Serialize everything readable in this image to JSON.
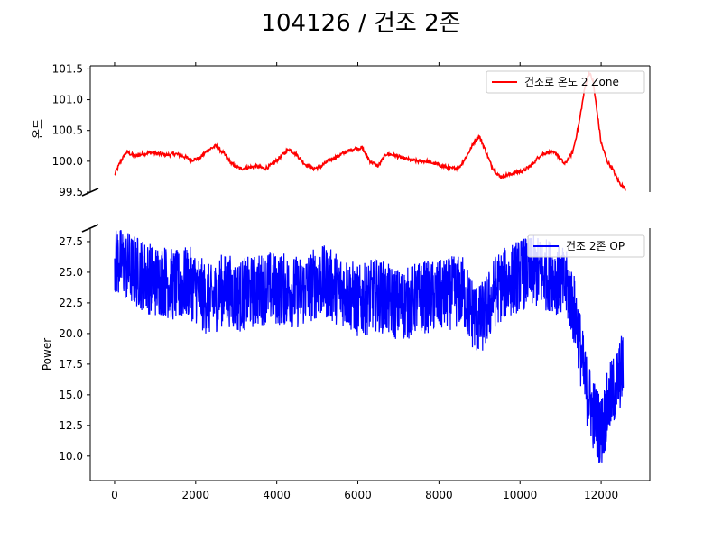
{
  "title": "104126 / 건조 2존",
  "colors": {
    "temperature": "#ff0000",
    "power": "#0000ff"
  },
  "chart_data": [
    {
      "type": "line",
      "panel": "top",
      "ylabel": "온도",
      "xlabel": "",
      "xlim": [
        -600,
        13200
      ],
      "ylim": [
        99.5,
        101.55
      ],
      "yticks": [
        99.5,
        100.0,
        100.5,
        101.0,
        101.5
      ],
      "ytick_labels": [
        "99.5",
        "100.0",
        "100.5",
        "101.0",
        "101.5"
      ],
      "legend_position": "top-right",
      "series": [
        {
          "name": "건조로 온도 2 Zone",
          "color": "#ff0000",
          "x": [
            0,
            150,
            300,
            500,
            700,
            900,
            1100,
            1300,
            1500,
            1700,
            1900,
            2100,
            2300,
            2500,
            2700,
            2900,
            3100,
            3300,
            3500,
            3700,
            3900,
            4100,
            4300,
            4500,
            4700,
            4900,
            5100,
            5300,
            5500,
            5700,
            5900,
            6100,
            6300,
            6500,
            6700,
            6900,
            7100,
            7300,
            7500,
            7700,
            7900,
            8100,
            8300,
            8500,
            8700,
            8900,
            9000,
            9100,
            9300,
            9500,
            9700,
            9900,
            10100,
            10300,
            10500,
            10700,
            10900,
            11100,
            11300,
            11450,
            11600,
            11700,
            11800,
            11900,
            12000,
            12150,
            12300,
            12450,
            12600
          ],
          "values": [
            99.78,
            100.0,
            100.15,
            100.08,
            100.12,
            100.14,
            100.12,
            100.1,
            100.12,
            100.08,
            100.02,
            100.05,
            100.18,
            100.25,
            100.12,
            99.95,
            99.88,
            99.9,
            99.92,
            99.88,
            99.95,
            100.08,
            100.2,
            100.1,
            99.95,
            99.88,
            99.92,
            100.02,
            100.08,
            100.15,
            100.2,
            100.22,
            100.0,
            99.92,
            100.12,
            100.1,
            100.05,
            100.02,
            100.0,
            100.0,
            99.96,
            99.92,
            99.88,
            99.9,
            100.1,
            100.35,
            100.4,
            100.25,
            99.92,
            99.75,
            99.78,
            99.82,
            99.85,
            99.95,
            100.1,
            100.15,
            100.12,
            99.95,
            100.15,
            100.6,
            101.2,
            101.45,
            101.3,
            100.8,
            100.3,
            100.0,
            99.85,
            99.65,
            99.55
          ]
        }
      ]
    },
    {
      "type": "line",
      "panel": "bottom",
      "ylabel": "Power",
      "xlabel": "",
      "xlim": [
        -600,
        13200
      ],
      "ylim": [
        8.0,
        28.6
      ],
      "yticks": [
        10.0,
        12.5,
        15.0,
        17.5,
        20.0,
        22.5,
        25.0,
        27.5
      ],
      "ytick_labels": [
        "10.0",
        "12.5",
        "15.0",
        "17.5",
        "20.0",
        "22.5",
        "25.0",
        "27.5"
      ],
      "xticks": [
        0,
        2000,
        4000,
        6000,
        8000,
        10000,
        12000
      ],
      "xtick_labels": [
        "0",
        "2000",
        "4000",
        "6000",
        "8000",
        "10000",
        "12000"
      ],
      "legend_position": "top-right",
      "series": [
        {
          "name": "건조 2존 OP",
          "color": "#0000ff",
          "x": [
            0,
            200,
            400,
            600,
            800,
            1000,
            1200,
            1400,
            1600,
            1800,
            2000,
            2200,
            2400,
            2600,
            2800,
            3000,
            3200,
            3400,
            3600,
            3800,
            4000,
            4200,
            4400,
            4600,
            4800,
            5000,
            5200,
            5400,
            5600,
            5800,
            6000,
            6200,
            6400,
            6600,
            6800,
            7000,
            7200,
            7400,
            7600,
            7800,
            8000,
            8200,
            8400,
            8600,
            8800,
            9000,
            9200,
            9400,
            9600,
            9800,
            10000,
            10200,
            10400,
            10600,
            10800,
            11000,
            11200,
            11400,
            11600,
            11800,
            12000,
            12200,
            12400,
            12550
          ],
          "values": [
            26.0,
            25.8,
            25.2,
            25.0,
            24.6,
            24.3,
            24.4,
            24.0,
            23.8,
            24.2,
            23.8,
            23.0,
            22.6,
            23.5,
            23.6,
            23.0,
            23.2,
            23.4,
            23.6,
            23.8,
            23.6,
            23.6,
            23.4,
            23.4,
            23.8,
            24.2,
            24.2,
            23.8,
            23.6,
            23.2,
            22.6,
            22.8,
            23.2,
            23.0,
            22.6,
            22.4,
            22.4,
            22.8,
            23.0,
            23.0,
            23.0,
            23.2,
            23.4,
            23.4,
            21.8,
            21.0,
            22.0,
            23.6,
            24.0,
            24.4,
            24.8,
            25.0,
            25.0,
            24.8,
            24.8,
            24.2,
            23.6,
            21.0,
            16.0,
            13.5,
            12.0,
            14.5,
            16.0,
            17.5
          ],
          "noise_amplitude": 3.0
        }
      ]
    }
  ]
}
